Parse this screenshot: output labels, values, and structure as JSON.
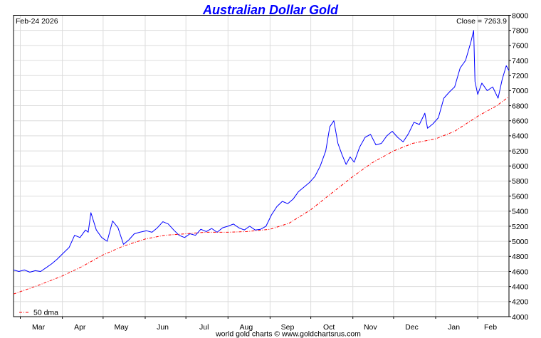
{
  "chart_data": {
    "type": "line",
    "title": "Australian Dollar Gold",
    "date_label": "Feb-24  2026",
    "close_label": "Close = 7263.9",
    "footer": "world gold charts © www.goldchartsrus.com",
    "ylim": [
      4000,
      8000
    ],
    "yticks": [
      4000,
      4200,
      4400,
      4600,
      4800,
      5000,
      5200,
      5400,
      5600,
      5800,
      6000,
      6200,
      6400,
      6600,
      6800,
      7000,
      7200,
      7400,
      7600,
      7800,
      8000
    ],
    "x_range": [
      "2025-02-24",
      "2026-02-24"
    ],
    "month_ticks": [
      {
        "label": "Mar",
        "date": "2025-03-01"
      },
      {
        "label": "Apr",
        "date": "2025-04-01"
      },
      {
        "label": "May",
        "date": "2025-05-01"
      },
      {
        "label": "Jun",
        "date": "2025-06-01"
      },
      {
        "label": "Jul",
        "date": "2025-07-01"
      },
      {
        "label": "Aug",
        "date": "2025-08-01"
      },
      {
        "label": "Sep",
        "date": "2025-09-01"
      },
      {
        "label": "Oct",
        "date": "2025-10-01"
      },
      {
        "label": "Nov",
        "date": "2025-11-01"
      },
      {
        "label": "Dec",
        "date": "2025-12-01"
      },
      {
        "label": "Jan",
        "date": "2026-01-01"
      },
      {
        "label": "Feb",
        "date": "2026-02-01"
      }
    ],
    "grid": true,
    "legend": {
      "position": "bottom-left",
      "entries": [
        "50 dma"
      ]
    },
    "series": [
      {
        "name": "",
        "color": "#0000ff",
        "style": "solid",
        "points": [
          [
            "2025-02-24",
            4620
          ],
          [
            "2025-02-28",
            4600
          ],
          [
            "2025-03-04",
            4620
          ],
          [
            "2025-03-08",
            4590
          ],
          [
            "2025-03-12",
            4610
          ],
          [
            "2025-03-16",
            4600
          ],
          [
            "2025-03-20",
            4650
          ],
          [
            "2025-03-24",
            4700
          ],
          [
            "2025-03-28",
            4760
          ],
          [
            "2025-04-02",
            4850
          ],
          [
            "2025-04-06",
            4920
          ],
          [
            "2025-04-10",
            5080
          ],
          [
            "2025-04-14",
            5050
          ],
          [
            "2025-04-18",
            5150
          ],
          [
            "2025-04-20",
            5120
          ],
          [
            "2025-04-22",
            5380
          ],
          [
            "2025-04-26",
            5150
          ],
          [
            "2025-04-30",
            5050
          ],
          [
            "2025-05-04",
            5000
          ],
          [
            "2025-05-08",
            5270
          ],
          [
            "2025-05-12",
            5180
          ],
          [
            "2025-05-16",
            4960
          ],
          [
            "2025-05-20",
            5020
          ],
          [
            "2025-05-24",
            5100
          ],
          [
            "2025-05-28",
            5120
          ],
          [
            "2025-06-02",
            5140
          ],
          [
            "2025-06-06",
            5120
          ],
          [
            "2025-06-10",
            5180
          ],
          [
            "2025-06-14",
            5260
          ],
          [
            "2025-06-18",
            5230
          ],
          [
            "2025-06-22",
            5150
          ],
          [
            "2025-06-26",
            5080
          ],
          [
            "2025-06-30",
            5050
          ],
          [
            "2025-07-04",
            5100
          ],
          [
            "2025-07-08",
            5080
          ],
          [
            "2025-07-12",
            5160
          ],
          [
            "2025-07-16",
            5130
          ],
          [
            "2025-07-20",
            5170
          ],
          [
            "2025-07-24",
            5120
          ],
          [
            "2025-07-28",
            5180
          ],
          [
            "2025-08-01",
            5200
          ],
          [
            "2025-08-05",
            5230
          ],
          [
            "2025-08-09",
            5180
          ],
          [
            "2025-08-13",
            5150
          ],
          [
            "2025-08-17",
            5200
          ],
          [
            "2025-08-21",
            5150
          ],
          [
            "2025-08-25",
            5160
          ],
          [
            "2025-08-29",
            5200
          ],
          [
            "2025-09-02",
            5350
          ],
          [
            "2025-09-06",
            5460
          ],
          [
            "2025-09-10",
            5530
          ],
          [
            "2025-09-14",
            5500
          ],
          [
            "2025-09-18",
            5560
          ],
          [
            "2025-09-22",
            5660
          ],
          [
            "2025-09-26",
            5720
          ],
          [
            "2025-09-30",
            5780
          ],
          [
            "2025-10-04",
            5860
          ],
          [
            "2025-10-08",
            6000
          ],
          [
            "2025-10-12",
            6200
          ],
          [
            "2025-10-15",
            6520
          ],
          [
            "2025-10-18",
            6600
          ],
          [
            "2025-10-21",
            6300
          ],
          [
            "2025-10-24",
            6150
          ],
          [
            "2025-10-27",
            6020
          ],
          [
            "2025-10-30",
            6120
          ],
          [
            "2025-11-02",
            6050
          ],
          [
            "2025-11-06",
            6250
          ],
          [
            "2025-11-10",
            6380
          ],
          [
            "2025-11-14",
            6420
          ],
          [
            "2025-11-18",
            6280
          ],
          [
            "2025-11-22",
            6300
          ],
          [
            "2025-11-26",
            6400
          ],
          [
            "2025-11-30",
            6460
          ],
          [
            "2025-12-04",
            6380
          ],
          [
            "2025-12-08",
            6320
          ],
          [
            "2025-12-12",
            6430
          ],
          [
            "2025-12-16",
            6580
          ],
          [
            "2025-12-20",
            6550
          ],
          [
            "2025-12-24",
            6700
          ],
          [
            "2025-12-26",
            6500
          ],
          [
            "2025-12-30",
            6560
          ],
          [
            "2026-01-03",
            6640
          ],
          [
            "2026-01-07",
            6900
          ],
          [
            "2026-01-11",
            6980
          ],
          [
            "2026-01-15",
            7050
          ],
          [
            "2026-01-19",
            7300
          ],
          [
            "2026-01-23",
            7400
          ],
          [
            "2026-01-27",
            7650
          ],
          [
            "2026-01-29",
            7800
          ],
          [
            "2026-01-30",
            7120
          ],
          [
            "2026-02-01",
            6950
          ],
          [
            "2026-02-04",
            7100
          ],
          [
            "2026-02-08",
            7000
          ],
          [
            "2026-02-12",
            7050
          ],
          [
            "2026-02-16",
            6900
          ],
          [
            "2026-02-19",
            7150
          ],
          [
            "2026-02-22",
            7330
          ],
          [
            "2026-02-24",
            7263.9
          ]
        ]
      },
      {
        "name": "50 dma",
        "color": "#ff0000",
        "style": "dashdot",
        "points": [
          [
            "2025-02-24",
            4300
          ],
          [
            "2025-03-15",
            4420
          ],
          [
            "2025-04-01",
            4540
          ],
          [
            "2025-04-15",
            4660
          ],
          [
            "2025-05-01",
            4820
          ],
          [
            "2025-05-15",
            4930
          ],
          [
            "2025-06-01",
            5030
          ],
          [
            "2025-06-15",
            5080
          ],
          [
            "2025-07-01",
            5100
          ],
          [
            "2025-07-15",
            5120
          ],
          [
            "2025-08-01",
            5120
          ],
          [
            "2025-08-15",
            5130
          ],
          [
            "2025-09-01",
            5160
          ],
          [
            "2025-09-15",
            5240
          ],
          [
            "2025-10-01",
            5420
          ],
          [
            "2025-10-15",
            5620
          ],
          [
            "2025-11-01",
            5860
          ],
          [
            "2025-11-15",
            6040
          ],
          [
            "2025-12-01",
            6200
          ],
          [
            "2025-12-15",
            6300
          ],
          [
            "2026-01-01",
            6360
          ],
          [
            "2026-01-15",
            6460
          ],
          [
            "2026-02-01",
            6660
          ],
          [
            "2026-02-15",
            6800
          ],
          [
            "2026-02-24",
            6920
          ]
        ]
      }
    ]
  }
}
